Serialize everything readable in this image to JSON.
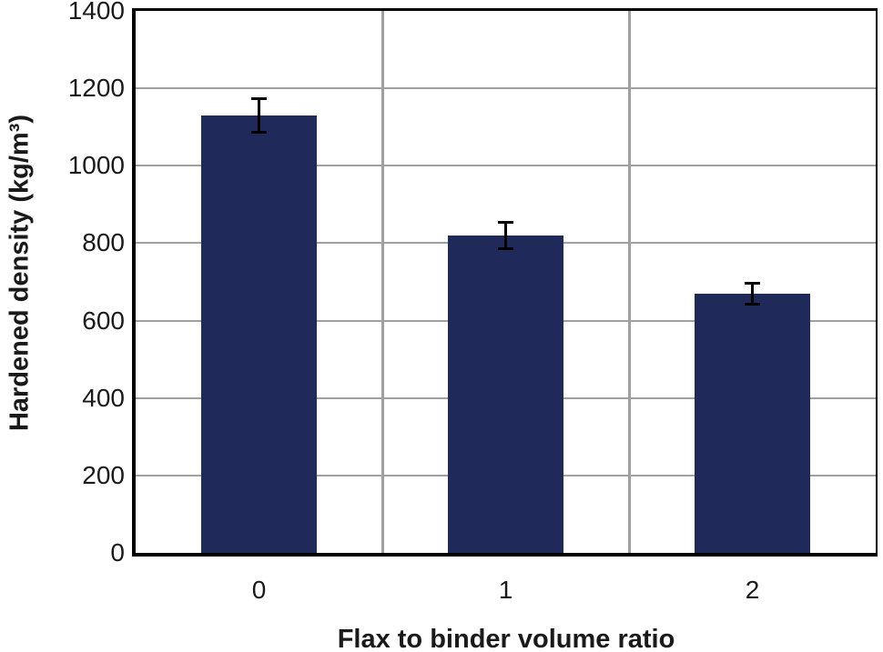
{
  "chart_data": {
    "type": "bar",
    "title": "",
    "categories": [
      "0",
      "1",
      "2"
    ],
    "values": [
      1130,
      820,
      670
    ],
    "errors": [
      45,
      35,
      28
    ],
    "xlabel": "Flax to binder volume ratio",
    "ylabel": "Hardened density (kg/m³)",
    "ylim": [
      0,
      1400
    ],
    "yticks": [
      0,
      200,
      400,
      600,
      800,
      1000,
      1200,
      1400
    ],
    "grid": true,
    "legend": false,
    "bar_color": "#1f2a5b",
    "gridline_color": "#a0a0a0",
    "axis_frame_color": "#000000",
    "error_bar_color": "#000000",
    "bar_width_fraction": 0.47
  }
}
